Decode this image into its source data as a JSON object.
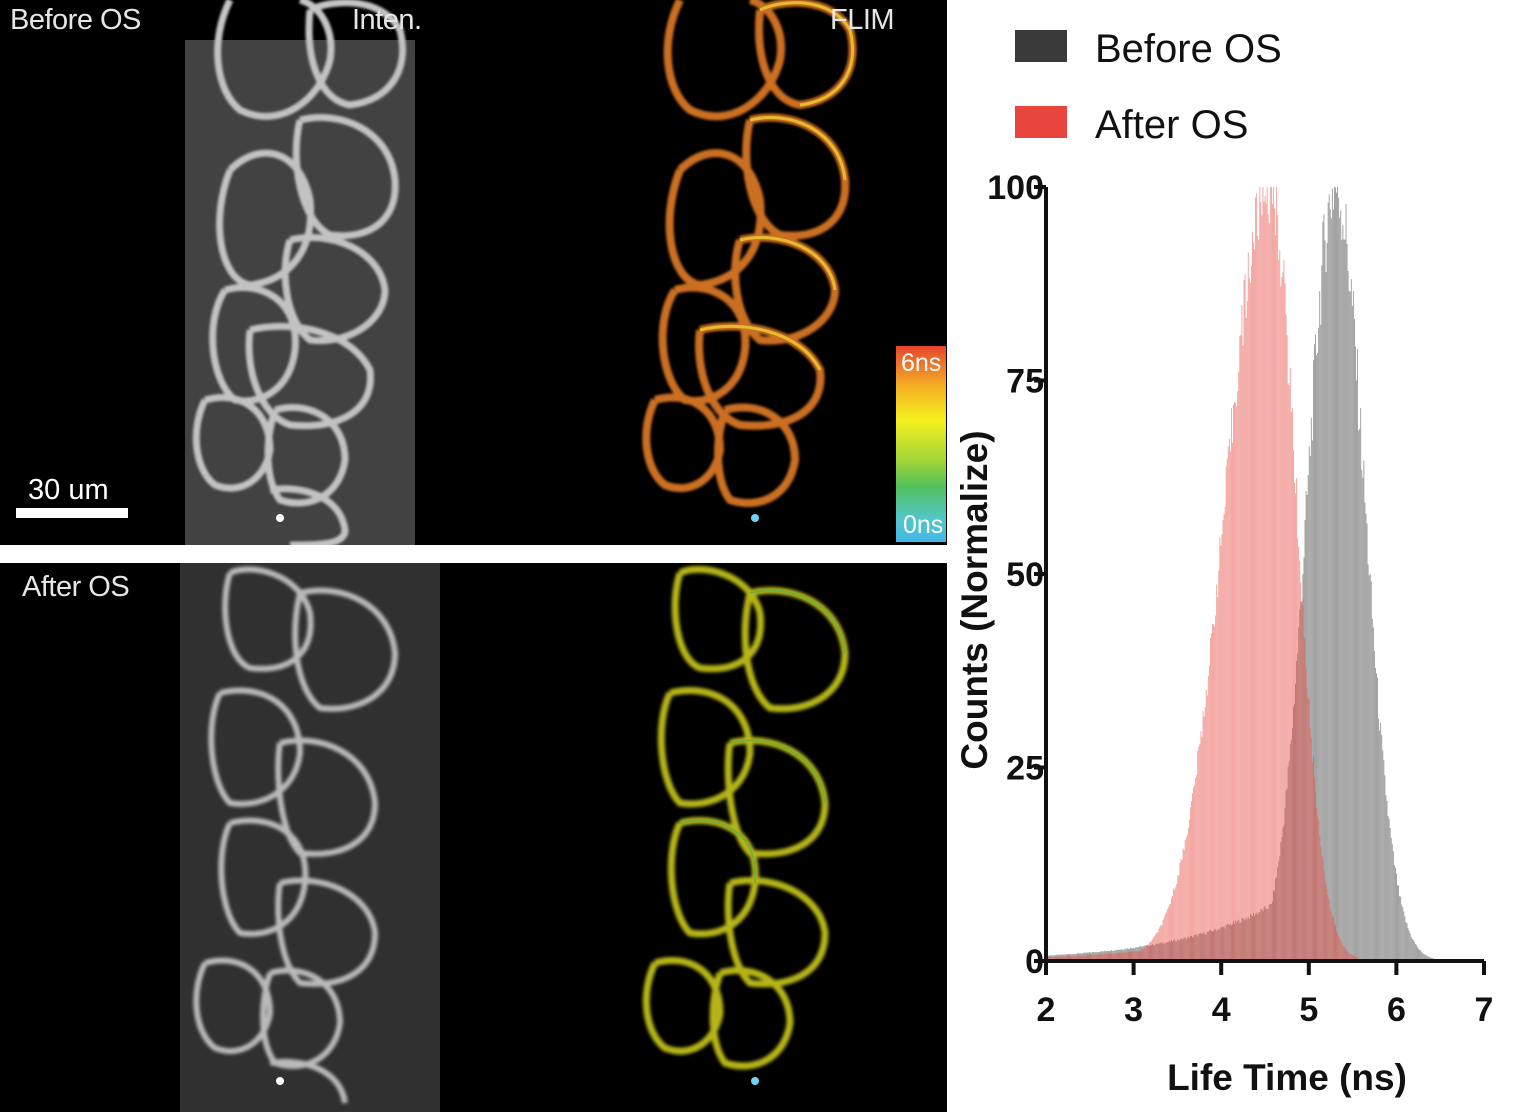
{
  "panels": {
    "top": {
      "label": "Before OS",
      "channel_intensity": "Inten.",
      "channel_flim": "FLIM"
    },
    "bottom": {
      "label": "After OS"
    },
    "scale_bar": "30 um",
    "colorbar": {
      "max": "6ns",
      "min": "0ns"
    }
  },
  "chart_data": {
    "type": "bar",
    "xlabel": "Life Time (ns)",
    "ylabel": "Counts  (Normalize)",
    "xlim": [
      2,
      7
    ],
    "ylim": [
      0,
      100
    ],
    "xticks": [
      "2",
      "3",
      "4",
      "5",
      "6",
      "7"
    ],
    "yticks": [
      "0",
      "25",
      "50",
      "75",
      "100"
    ],
    "legend_position": "top",
    "series": [
      {
        "name": "Before OS",
        "color": "#3a3a3a",
        "peak_x": 5.3,
        "peak_y": 100
      },
      {
        "name": "After OS",
        "color": "#e8453c",
        "peak_x": 4.55,
        "peak_y": 100
      }
    ]
  }
}
